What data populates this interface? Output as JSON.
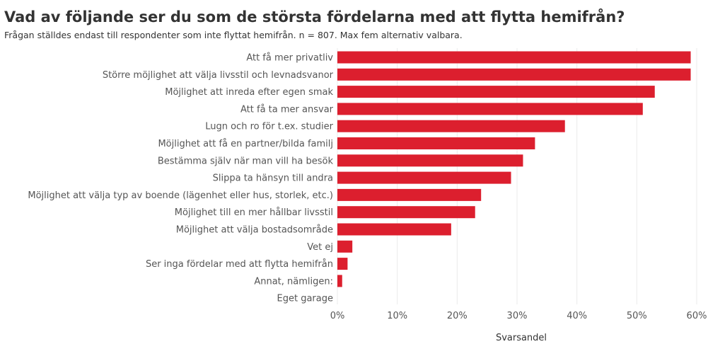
{
  "chart_data": {
    "type": "bar",
    "orientation": "horizontal",
    "title": "Vad av följande ser du som de största fördelarna med att flytta hemifrån?",
    "subtitle": "Frågan ställdes endast till respondenter som inte flyttat hemifrån. n = 807. Max fem alternativ valbara.",
    "xlabel": "Svarsandel",
    "ylabel": "",
    "xlim": [
      0,
      60
    ],
    "xticks": [
      0,
      10,
      20,
      30,
      40,
      50,
      60
    ],
    "tick_suffix": "%",
    "bar_color": "#dc1f2e",
    "grid": true,
    "categories": [
      "Att få mer privatliv",
      "Större möjlighet att välja livsstil och levnadsvanor",
      "Möjlighet att inreda efter egen smak",
      "Att få ta mer ansvar",
      "Lugn och ro för t.ex. studier",
      "Möjlighet att få en partner/bilda familj",
      "Bestämma själv när man vill ha besök",
      "Slippa ta hänsyn till andra",
      "Möjlighet att välja typ av boende (lägenhet eller hus, storlek, etc.)",
      "Möjlighet till en mer hållbar livsstil",
      "Möjlighet att välja bostadsområde",
      "Vet ej",
      "Ser inga fördelar med att flytta hemifrån",
      "Annat, nämligen:",
      "Eget garage"
    ],
    "values": [
      59,
      59,
      53,
      51,
      38,
      33,
      31,
      29,
      24,
      23,
      19,
      2.5,
      1.7,
      0.8,
      0
    ]
  }
}
